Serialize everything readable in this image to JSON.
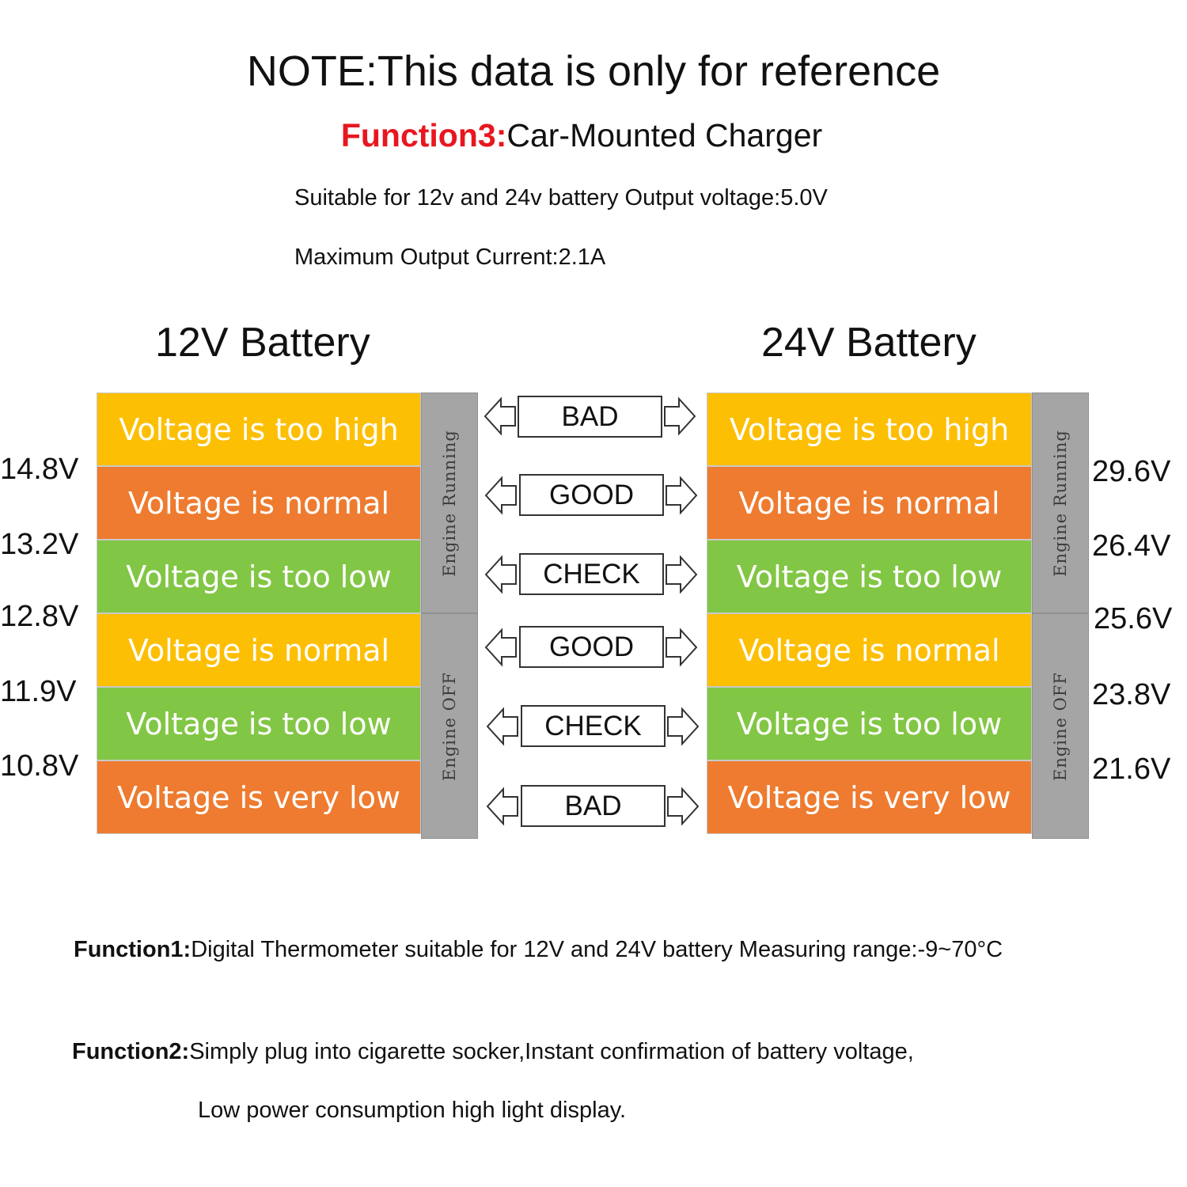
{
  "header": {
    "note": "NOTE:This data is only for reference",
    "function3_label": "Function3:",
    "function3_text": "Car-Mounted Charger",
    "spec_line1": "Suitable for 12v and 24v battery Output voltage:5.0V",
    "spec_line2": "Maximum Output Current:2.1A"
  },
  "battery12": {
    "title": "12V Battery",
    "rows": [
      "Voltage is too high",
      "Voltage is normal",
      "Voltage is too low",
      "Voltage is normal",
      "Voltage is too low",
      "Voltage is very low"
    ],
    "thresholds": [
      "14.8V",
      "13.2V",
      "12.8V",
      "11.9V",
      "10.8V"
    ],
    "engine_running": "Engine Running",
    "engine_off": "Engine OFF"
  },
  "battery24": {
    "title": "24V Battery",
    "rows": [
      "Voltage is too high",
      "Voltage is normal",
      "Voltage is too low",
      "Voltage is normal",
      "Voltage is too low",
      "Voltage is very low"
    ],
    "thresholds": [
      "29.6V",
      "26.4V",
      "25.6V",
      "23.8V",
      "21.6V"
    ],
    "engine_running": "Engine Running",
    "engine_off": "Engine OFF"
  },
  "statuses": [
    "BAD",
    "GOOD",
    "CHECK",
    "GOOD",
    "CHECK",
    "BAD"
  ],
  "colors": {
    "yellow": "#fdbf04",
    "orange": "#ee7b2f",
    "green": "#82c645",
    "engine_bar": "#a5a5a5",
    "function3_label": "#e8171f"
  },
  "footer": {
    "function1_label": "Function1:",
    "function1_text": "Digital Thermometer suitable for 12V and 24V battery Measuring range:-9~70°C",
    "function2_label": "Function2:",
    "function2_text": "Simply plug into cigarette socker,Instant confirmation of battery voltage,",
    "function2_text2": "Low power consumption high light display."
  }
}
